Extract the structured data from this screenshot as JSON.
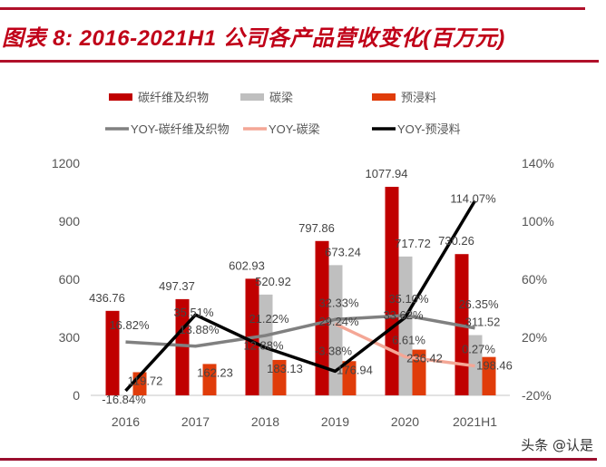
{
  "title": "图表 8: 2016-2021H1 公司各产品营收变化(百万元)",
  "watermark": "头条 @认是",
  "colors": {
    "carbon_fiber": "#c00000",
    "carbon_beam": "#bfbfbf",
    "prepreg": "#e03c0a",
    "yoy_carbon_fiber": "#808080",
    "yoy_carbon_beam": "#f4a796",
    "yoy_prepreg": "#000000",
    "title": "#c00018"
  },
  "chart_data": {
    "type": "bar+line",
    "categories": [
      "2016",
      "2017",
      "2018",
      "2019",
      "2020",
      "2021H1"
    ],
    "left_axis": {
      "range": [
        0,
        1200
      ],
      "ticks": [
        "0",
        "300",
        "600",
        "900",
        "1200"
      ]
    },
    "right_axis": {
      "range": [
        -20,
        140
      ],
      "ticks": [
        "-20%",
        "20%",
        "60%",
        "100%",
        "140%"
      ]
    },
    "grid": false,
    "legend_position": "top",
    "bar_series": [
      {
        "name": "碳纤维及织物",
        "color_key": "carbon_fiber",
        "values": [
          436.76,
          497.37,
          602.93,
          797.86,
          1077.94,
          730.26
        ],
        "labels": [
          "436.76",
          "497.37",
          "602.93",
          "797.86",
          "1077.94",
          "730.26"
        ]
      },
      {
        "name": "碳梁",
        "color_key": "carbon_beam",
        "values": [
          null,
          null,
          520.92,
          673.24,
          717.72,
          311.52
        ],
        "labels": [
          "",
          "",
          "520.92",
          "673.24",
          "717.72",
          "311.52"
        ]
      },
      {
        "name": "预浸料",
        "color_key": "prepreg",
        "values": [
          119.72,
          162.23,
          183.13,
          176.94,
          236.42,
          198.46
        ],
        "labels": [
          "119.72",
          "162.23",
          "183.13",
          "176.94",
          "236.42",
          "198.46"
        ]
      }
    ],
    "line_series": [
      {
        "name": "YOY-碳纤维及织物",
        "color_key": "yoy_carbon_fiber",
        "values": [
          16.82,
          13.88,
          21.22,
          32.33,
          35.1,
          26.35
        ],
        "labels": [
          "16.82%",
          "13.88%",
          "21.22%",
          "32.33%",
          "35.10%",
          "26.35%"
        ]
      },
      {
        "name": "YOY-碳梁",
        "color_key": "yoy_carbon_beam",
        "values": [
          null,
          null,
          null,
          29.24,
          6.61,
          0.27
        ],
        "labels": [
          "",
          "",
          "",
          "29.24%",
          "6.61%",
          "0.27%"
        ]
      },
      {
        "name": "YOY-预浸料",
        "color_key": "yoy_prepreg",
        "values": [
          -16.84,
          35.51,
          12.88,
          -3.38,
          33.62,
          114.07
        ],
        "labels": [
          "-16.84%",
          "35.51%",
          "12.88%",
          "-3.38%",
          "33.62%",
          "114.07%"
        ]
      }
    ]
  }
}
